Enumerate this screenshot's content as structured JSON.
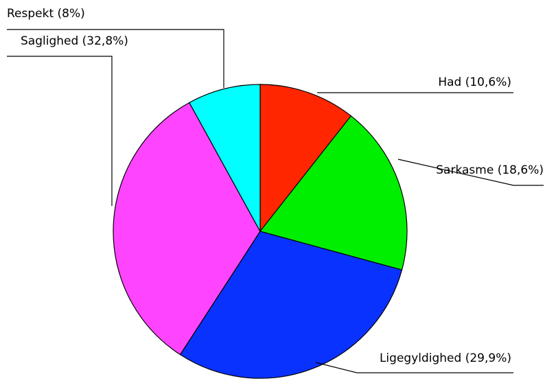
{
  "chart_data": {
    "type": "pie",
    "categories": [
      "Had",
      "Sarkasme",
      "Ligegyldighed",
      "Saglighed",
      "Respekt"
    ],
    "values": [
      10.6,
      18.6,
      29.9,
      32.8,
      8
    ],
    "value_labels": [
      "(10,6%)",
      "(18,6%)",
      "(29,9%)",
      "(32,8%)",
      "(8%)"
    ],
    "colors": [
      "#ff2600",
      "#00ee00",
      "#0a32ff",
      "#ff44ff",
      "#00ffff"
    ]
  }
}
